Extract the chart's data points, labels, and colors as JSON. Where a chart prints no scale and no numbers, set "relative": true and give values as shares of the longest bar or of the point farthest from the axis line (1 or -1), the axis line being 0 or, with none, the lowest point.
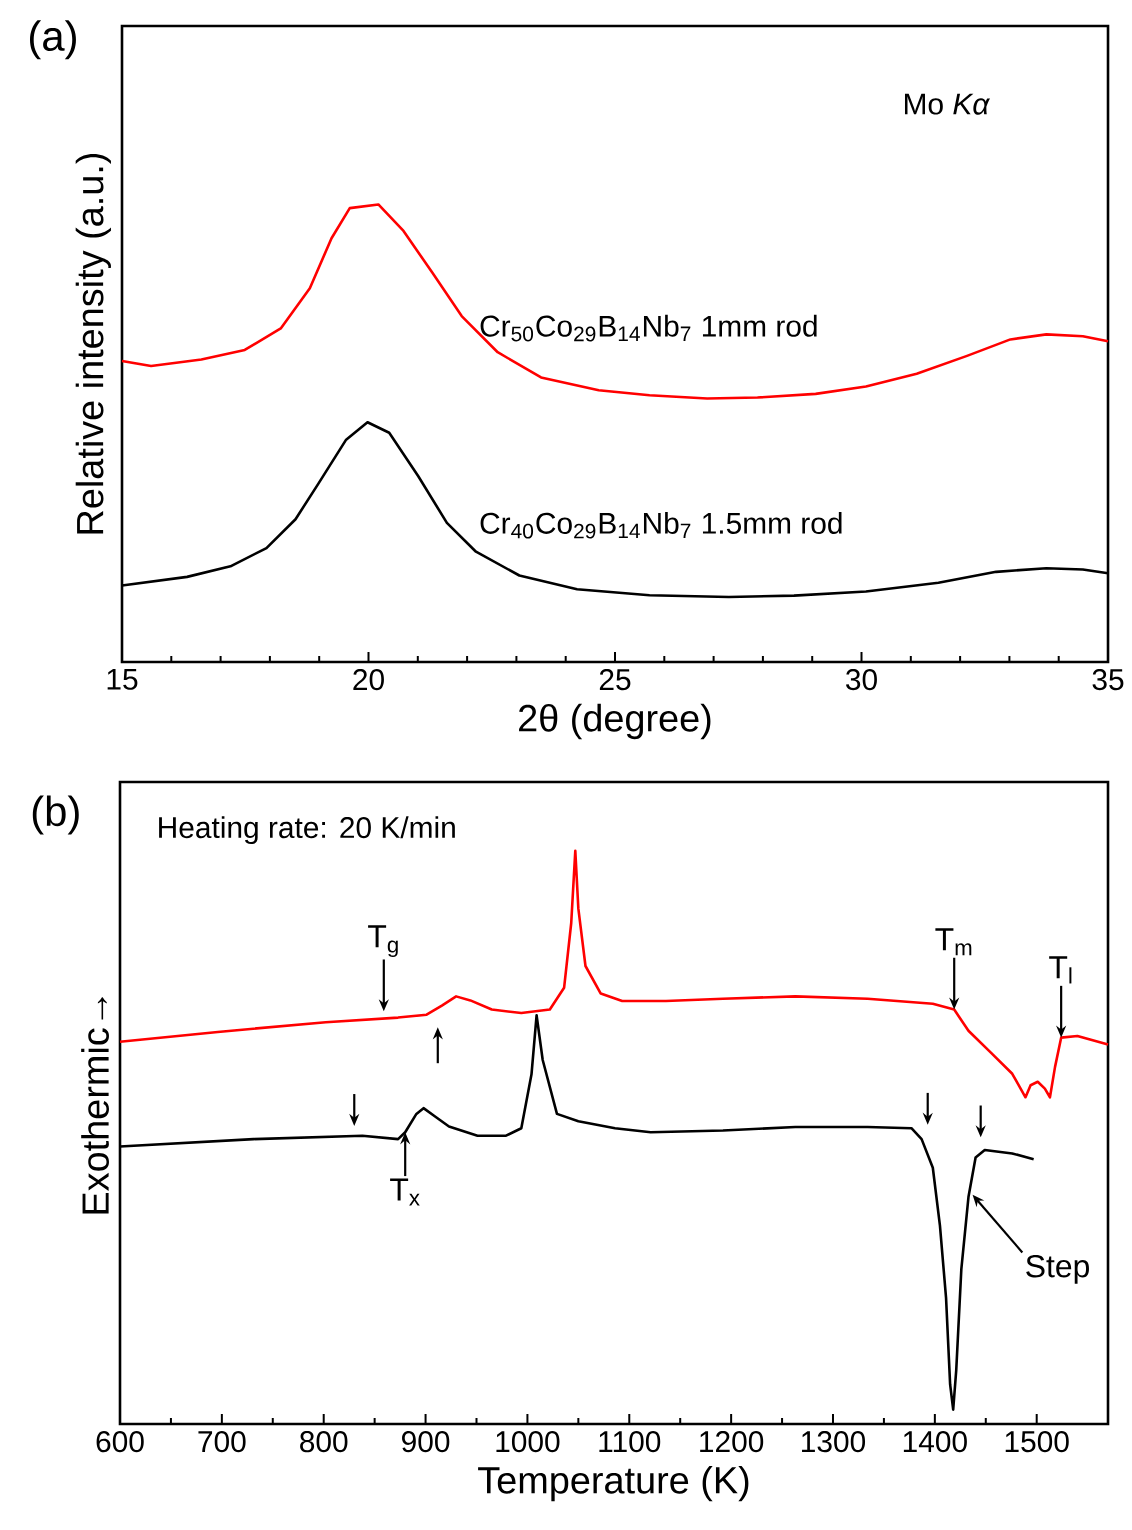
{
  "chart_data": [
    {
      "type": "line",
      "relative": true,
      "xlabel": "2θ (degree)",
      "ylabel": "Relative intensity (a.u.)",
      "xlim": [
        15,
        35
      ],
      "xticks": [
        15,
        20,
        25,
        30,
        35
      ],
      "legend": false,
      "annotations": [
        "(a)",
        "Mo *Kα*"
      ],
      "series": [
        {
          "name": "Cr$_{50}$Co$_{29}$B$_{14}$Nb$_{7}$   1mm rod",
          "color": "#ff0000",
          "x": [
            15.0,
            15.59,
            16.61,
            17.49,
            18.22,
            18.81,
            19.25,
            19.62,
            20.2,
            20.71,
            21.3,
            21.89,
            22.62,
            23.5,
            24.67,
            25.7,
            26.87,
            27.89,
            29.07,
            30.09,
            31.12,
            32.14,
            33.02,
            33.75,
            34.49,
            35.0
          ],
          "values": [
            0.658,
            0.647,
            0.661,
            0.682,
            0.729,
            0.817,
            0.926,
            0.992,
            1.0,
            0.942,
            0.85,
            0.756,
            0.677,
            0.622,
            0.594,
            0.583,
            0.576,
            0.578,
            0.586,
            0.602,
            0.63,
            0.669,
            0.705,
            0.716,
            0.712,
            0.701
          ]
        },
        {
          "name": "Cr$_{40}$Co$_{29}$B$_{14}$Nb$_{7}$   1.5mm rod",
          "color": "#000000",
          "x": [
            15.0,
            16.32,
            17.2,
            17.93,
            18.52,
            18.99,
            19.54,
            19.98,
            20.42,
            21.01,
            21.59,
            22.18,
            23.06,
            24.23,
            25.7,
            27.31,
            28.63,
            30.09,
            31.56,
            32.73,
            33.75,
            34.49,
            35.0
          ],
          "values": [
            0.167,
            0.186,
            0.209,
            0.249,
            0.312,
            0.391,
            0.485,
            0.524,
            0.501,
            0.406,
            0.304,
            0.241,
            0.189,
            0.159,
            0.146,
            0.142,
            0.145,
            0.154,
            0.173,
            0.197,
            0.205,
            0.202,
            0.194
          ]
        }
      ]
    },
    {
      "type": "line",
      "relative": true,
      "xlabel": "Temperature (K)",
      "ylabel": "Exothermic→",
      "xlim": [
        600,
        1570
      ],
      "xticks": [
        600,
        700,
        800,
        900,
        1000,
        1100,
        1200,
        1300,
        1400,
        1500
      ],
      "legend": false,
      "annotations": [
        "(b)",
        "Heating rate: 20 K/min",
        {
          "text": "T$_{g}$",
          "x": 859,
          "y": 0.72
        },
        {
          "text": "T$_{x}$",
          "x": 880,
          "y": 0.509
        },
        {
          "text": "T$_{m}$",
          "x": 1419,
          "y": 0.723
        },
        {
          "text": "T$_{l}$",
          "x": 1524,
          "y": 0.674
        },
        {
          "text": "Step",
          "x": 1437,
          "y": 0.4
        }
      ],
      "series": [
        {
          "color": "#ff0000",
          "x": [
            600,
            696,
            802,
            873,
            901,
            916,
            930,
            944,
            965,
            994,
            1022,
            1036,
            1043,
            1047,
            1050,
            1057,
            1072,
            1093,
            1136,
            1192,
            1263,
            1334,
            1398,
            1419,
            1433,
            1455,
            1476,
            1489,
            1494,
            1501,
            1508,
            1513,
            1518,
            1524,
            1540,
            1570
          ],
          "values": [
            0.667,
            0.684,
            0.701,
            0.709,
            0.714,
            0.73,
            0.746,
            0.739,
            0.723,
            0.717,
            0.723,
            0.761,
            0.874,
            1.0,
            0.899,
            0.799,
            0.751,
            0.738,
            0.738,
            0.742,
            0.746,
            0.742,
            0.733,
            0.723,
            0.686,
            0.648,
            0.611,
            0.57,
            0.591,
            0.597,
            0.585,
            0.57,
            0.623,
            0.674,
            0.677,
            0.662
          ]
        },
        {
          "color": "#000000",
          "x": [
            600,
            731,
            838,
            873,
            880,
            891,
            898,
            909,
            923,
            951,
            979,
            994,
            1004,
            1009,
            1015,
            1029,
            1050,
            1086,
            1121,
            1192,
            1263,
            1334,
            1377,
            1387,
            1398,
            1405,
            1411,
            1415,
            1418,
            1421,
            1426,
            1433,
            1440,
            1449,
            1476,
            1497
          ],
          "values": [
            0.484,
            0.497,
            0.503,
            0.497,
            0.509,
            0.541,
            0.551,
            0.537,
            0.519,
            0.503,
            0.503,
            0.516,
            0.61,
            0.713,
            0.635,
            0.541,
            0.528,
            0.516,
            0.509,
            0.512,
            0.518,
            0.518,
            0.516,
            0.497,
            0.447,
            0.346,
            0.22,
            0.069,
            0.025,
            0.094,
            0.27,
            0.396,
            0.465,
            0.478,
            0.472,
            0.462
          ]
        }
      ]
    }
  ]
}
